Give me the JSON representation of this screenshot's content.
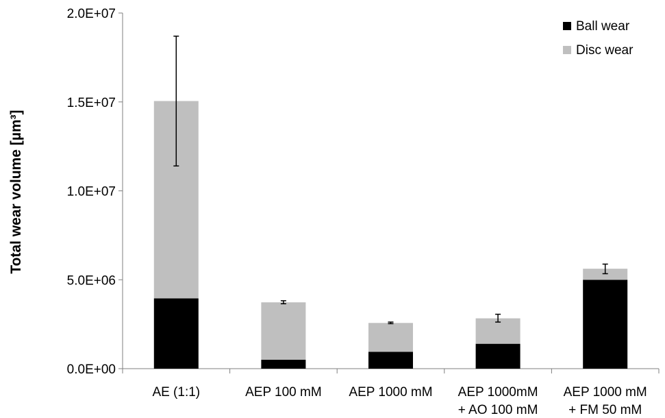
{
  "chart_data": {
    "type": "bar",
    "stacked": true,
    "ylabel": "Total wear volume [µm³]",
    "ylim": [
      0,
      20000000
    ],
    "yticks": [
      {
        "value": 0,
        "label": "0.0E+00"
      },
      {
        "value": 5000000,
        "label": "5.0E+06"
      },
      {
        "value": 10000000,
        "label": "1.0E+07"
      },
      {
        "value": 15000000,
        "label": "1.5E+07"
      },
      {
        "value": 20000000,
        "label": "2.0E+07"
      }
    ],
    "categories": [
      [
        "AE (1:1)"
      ],
      [
        "AEP 100 mM"
      ],
      [
        "AEP 1000 mM"
      ],
      [
        "AEP 1000mM",
        "+ AO 100 mM"
      ],
      [
        "AEP 1000 mM",
        "+ FM 50 mM"
      ]
    ],
    "series": [
      {
        "name": "Ball wear",
        "color": "#000000",
        "values": [
          3950000,
          500000,
          950000,
          1400000,
          5000000
        ]
      },
      {
        "name": "Disc wear",
        "color": "#bfbfbf",
        "values": [
          11100000,
          3230000,
          1620000,
          1430000,
          620000
        ]
      }
    ],
    "error_bars": {
      "center": [
        15050000,
        3730000,
        2570000,
        2830000,
        5620000
      ],
      "low": [
        11400000,
        3650000,
        2530000,
        2620000,
        5340000
      ],
      "high": [
        18700000,
        3820000,
        2620000,
        3060000,
        5880000
      ]
    },
    "legend_position": "top-right",
    "grid": false
  }
}
